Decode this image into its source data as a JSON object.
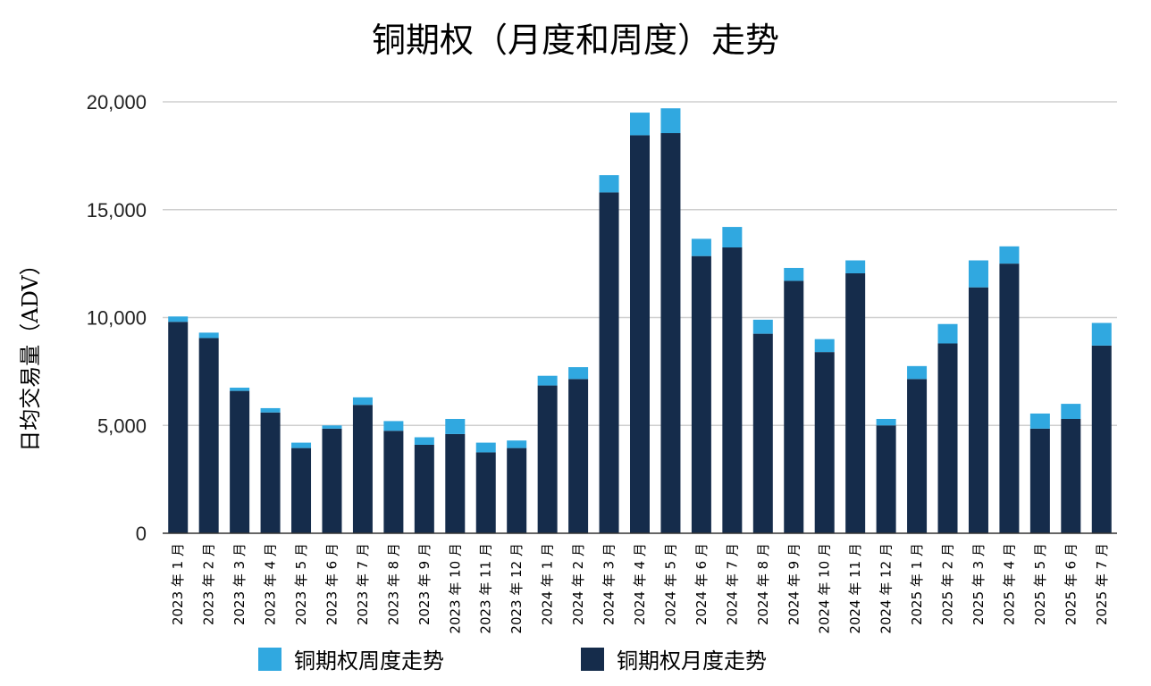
{
  "chart_data": {
    "type": "bar",
    "stacked": true,
    "title": "铜期权（月度和周度）走势",
    "ylabel": "日均交易量（ADV）",
    "xlabel": "",
    "ylim": [
      0,
      20000
    ],
    "yticks": [
      "0",
      "5,000",
      "10,000",
      "15,000",
      "20,000"
    ],
    "grid": true,
    "legend_position": "bottom",
    "categories": [
      "2023 年 1 月",
      "2023 年 2 月",
      "2023 年 3 月",
      "2023 年 4 月",
      "2023 年 5 月",
      "2023 年 6 月",
      "2023 年 7 月",
      "2023 年 8 月",
      "2023 年 9 月",
      "2023 年 10 月",
      "2023 年 11 月",
      "2023 年 12 月",
      "2024 年 1 月",
      "2024 年 2 月",
      "2024 年 3 月",
      "2024 年 4 月",
      "2024 年 5 月",
      "2024 年 6 月",
      "2024 年 7 月",
      "2024 年 8 月",
      "2024 年 9 月",
      "2024 年 10 月",
      "2024 年 11 月",
      "2024 年 12 月",
      "2025 年 1 月",
      "2025 年 2 月",
      "2025 年 3 月",
      "2025 年 4 月",
      "2025 年 5 月",
      "2025 年 6 月",
      "2025 年 7 月"
    ],
    "series": [
      {
        "name": "铜期权月度走势",
        "color": "#152c4b",
        "values": [
          9800,
          9050,
          6600,
          5600,
          3950,
          4850,
          5950,
          4750,
          4100,
          4600,
          3750,
          3950,
          6850,
          7150,
          15800,
          18450,
          18550,
          12850,
          13250,
          9250,
          11700,
          8400,
          12050,
          5000,
          7150,
          8800,
          11400,
          12500,
          4850,
          5300,
          8700
        ]
      },
      {
        "name": "铜期权周度走势",
        "color": "#30a8e0",
        "values": [
          250,
          250,
          150,
          200,
          250,
          150,
          350,
          450,
          350,
          700,
          450,
          350,
          450,
          550,
          800,
          1050,
          1150,
          800,
          950,
          650,
          600,
          600,
          600,
          300,
          600,
          900,
          1250,
          800,
          700,
          700,
          1050
        ]
      }
    ]
  },
  "legend": {
    "weekly_label": "铜期权周度走势",
    "monthly_label": "铜期权月度走势"
  }
}
